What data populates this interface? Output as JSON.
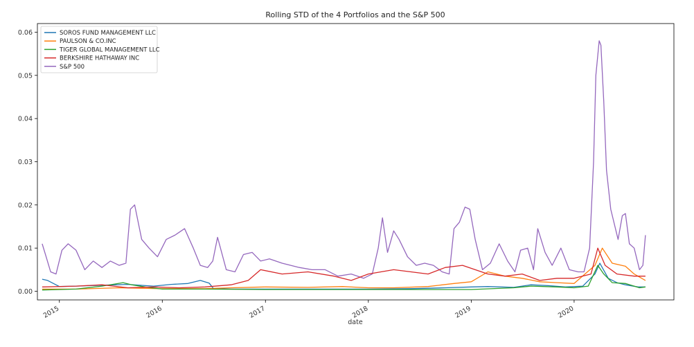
{
  "chart_data": {
    "type": "line",
    "title": "Rolling STD of the 4 Portfolios and the S&P 500",
    "xlabel": "date",
    "ylabel": "",
    "xlim": [
      "2014-10-15",
      "2020-12-20"
    ],
    "ylim": [
      -0.002,
      0.062
    ],
    "x_ticks": [
      "2015",
      "2016",
      "2017",
      "2018",
      "2019",
      "2020"
    ],
    "y_ticks": [
      "0.00",
      "0.01",
      "0.02",
      "0.03",
      "0.04",
      "0.05",
      "0.06"
    ],
    "grid": false,
    "legend_position": "top-left",
    "series": [
      {
        "name": "SOROS FUND MANAGEMENT LLC",
        "color": "#1f77b4",
        "x": [
          "2014-11-01",
          "2014-11-20",
          "2015-01-01",
          "2015-03-01",
          "2015-06-01",
          "2015-09-01",
          "2015-12-01",
          "2016-02-01",
          "2016-04-01",
          "2016-05-15",
          "2016-06-15",
          "2016-07-01",
          "2016-09-01",
          "2017-01-01",
          "2017-06-01",
          "2018-01-01",
          "2018-06-01",
          "2018-10-01",
          "2019-01-01",
          "2019-03-01",
          "2019-06-01",
          "2019-08-01",
          "2019-10-01",
          "2019-12-01",
          "2020-02-01",
          "2020-03-15",
          "2020-04-01",
          "2020-05-01",
          "2020-06-01",
          "2020-07-01",
          "2020-08-15",
          "2020-09-10"
        ],
        "y": [
          0.0028,
          0.0025,
          0.0011,
          0.0012,
          0.0014,
          0.0016,
          0.0012,
          0.0016,
          0.0018,
          0.0025,
          0.0019,
          0.0006,
          0.0005,
          0.0005,
          0.0005,
          0.0005,
          0.0006,
          0.0008,
          0.001,
          0.0011,
          0.0009,
          0.0015,
          0.0013,
          0.001,
          0.0012,
          0.004,
          0.0065,
          0.003,
          0.002,
          0.0015,
          0.001,
          0.001
        ]
      },
      {
        "name": "PAULSON & CO.INC",
        "color": "#ff7f0e",
        "x": [
          "2014-11-01",
          "2015-03-01",
          "2015-08-01",
          "2016-01-01",
          "2016-06-01",
          "2016-09-01",
          "2017-01-01",
          "2017-06-01",
          "2017-10-01",
          "2018-01-01",
          "2018-04-01",
          "2018-08-01",
          "2018-11-01",
          "2019-01-01",
          "2019-03-01",
          "2019-05-01",
          "2019-07-01",
          "2019-09-01",
          "2019-11-01",
          "2020-01-01",
          "2020-03-15",
          "2020-04-10",
          "2020-05-15",
          "2020-07-01",
          "2020-08-01",
          "2020-09-10"
        ],
        "y": [
          0.0005,
          0.0005,
          0.0008,
          0.0006,
          0.0006,
          0.0008,
          0.001,
          0.0009,
          0.0011,
          0.0008,
          0.0008,
          0.0011,
          0.0018,
          0.0022,
          0.0045,
          0.0035,
          0.003,
          0.0022,
          0.002,
          0.0018,
          0.006,
          0.01,
          0.0065,
          0.0058,
          0.004,
          0.0025
        ]
      },
      {
        "name": "TIGER GLOBAL MANAGEMENT LLC",
        "color": "#2ca02c",
        "x": [
          "2014-11-01",
          "2015-03-01",
          "2015-06-01",
          "2015-08-15",
          "2015-09-15",
          "2015-11-01",
          "2016-01-01",
          "2016-06-01",
          "2017-01-01",
          "2017-06-01",
          "2018-01-01",
          "2018-06-01",
          "2019-01-01",
          "2019-06-01",
          "2019-08-01",
          "2019-11-01",
          "2020-01-01",
          "2020-02-20",
          "2020-03-25",
          "2020-04-15",
          "2020-05-15",
          "2020-07-01",
          "2020-08-20",
          "2020-09-10"
        ],
        "y": [
          0.0003,
          0.0005,
          0.0012,
          0.002,
          0.0015,
          0.001,
          0.0005,
          0.0005,
          0.0004,
          0.0004,
          0.0004,
          0.0004,
          0.0004,
          0.0008,
          0.0012,
          0.001,
          0.0008,
          0.0012,
          0.006,
          0.004,
          0.002,
          0.0018,
          0.0008,
          0.001
        ]
      },
      {
        "name": "BERKSHIRE HATHAWAY INC",
        "color": "#d62728",
        "x": [
          "2014-11-01",
          "2015-03-01",
          "2015-06-01",
          "2015-09-01",
          "2015-12-01",
          "2016-03-01",
          "2016-06-01",
          "2016-09-01",
          "2016-11-01",
          "2016-12-15",
          "2017-03-01",
          "2017-06-01",
          "2017-09-01",
          "2017-11-01",
          "2018-01-01",
          "2018-04-01",
          "2018-06-01",
          "2018-08-01",
          "2018-10-01",
          "2018-12-01",
          "2019-03-01",
          "2019-05-01",
          "2019-07-01",
          "2019-09-01",
          "2019-11-01",
          "2020-01-01",
          "2020-03-01",
          "2020-03-25",
          "2020-04-20",
          "2020-06-01",
          "2020-08-01",
          "2020-09-10"
        ],
        "y": [
          0.001,
          0.0012,
          0.0015,
          0.0008,
          0.001,
          0.0008,
          0.001,
          0.0015,
          0.0025,
          0.005,
          0.004,
          0.0045,
          0.0035,
          0.0025,
          0.004,
          0.005,
          0.0045,
          0.004,
          0.0055,
          0.006,
          0.004,
          0.0035,
          0.004,
          0.0025,
          0.003,
          0.003,
          0.004,
          0.01,
          0.006,
          0.004,
          0.0035,
          0.0035
        ]
      },
      {
        "name": "S&P 500",
        "color": "#9467bd",
        "x": [
          "2014-11-01",
          "2014-11-15",
          "2014-12-01",
          "2014-12-20",
          "2015-01-10",
          "2015-02-01",
          "2015-03-01",
          "2015-04-01",
          "2015-05-01",
          "2015-06-01",
          "2015-07-01",
          "2015-08-01",
          "2015-08-25",
          "2015-09-10",
          "2015-09-25",
          "2015-10-20",
          "2015-11-15",
          "2015-12-15",
          "2016-01-15",
          "2016-02-15",
          "2016-03-20",
          "2016-04-20",
          "2016-05-15",
          "2016-06-10",
          "2016-06-28",
          "2016-07-15",
          "2016-08-15",
          "2016-09-15",
          "2016-10-15",
          "2016-11-15",
          "2016-12-15",
          "2017-01-15",
          "2017-03-01",
          "2017-05-01",
          "2017-06-15",
          "2017-08-01",
          "2017-09-15",
          "2017-11-01",
          "2017-12-15",
          "2018-01-15",
          "2018-02-05",
          "2018-02-20",
          "2018-03-10",
          "2018-04-01",
          "2018-04-20",
          "2018-05-20",
          "2018-06-20",
          "2018-07-20",
          "2018-08-20",
          "2018-09-20",
          "2018-10-15",
          "2018-11-01",
          "2018-11-20",
          "2018-12-10",
          "2018-12-27",
          "2019-01-15",
          "2019-02-10",
          "2019-03-10",
          "2019-04-10",
          "2019-05-10",
          "2019-06-05",
          "2019-06-25",
          "2019-07-20",
          "2019-08-10",
          "2019-08-25",
          "2019-09-20",
          "2019-10-15",
          "2019-11-15",
          "2019-12-15",
          "2020-01-15",
          "2020-02-05",
          "2020-02-25",
          "2020-03-10",
          "2020-03-18",
          "2020-03-30",
          "2020-04-05",
          "2020-04-15",
          "2020-04-25",
          "2020-05-10",
          "2020-06-05",
          "2020-06-20",
          "2020-07-01",
          "2020-07-15",
          "2020-08-01",
          "2020-08-20",
          "2020-09-01",
          "2020-09-10"
        ],
        "y": [
          0.011,
          0.008,
          0.0045,
          0.004,
          0.0095,
          0.011,
          0.0095,
          0.005,
          0.007,
          0.0055,
          0.007,
          0.006,
          0.0065,
          0.019,
          0.02,
          0.012,
          0.01,
          0.008,
          0.012,
          0.013,
          0.0145,
          0.01,
          0.006,
          0.0055,
          0.007,
          0.0125,
          0.005,
          0.0045,
          0.0085,
          0.009,
          0.007,
          0.0075,
          0.0065,
          0.0055,
          0.005,
          0.005,
          0.0035,
          0.004,
          0.003,
          0.004,
          0.01,
          0.017,
          0.009,
          0.014,
          0.012,
          0.008,
          0.006,
          0.0065,
          0.006,
          0.0045,
          0.004,
          0.0145,
          0.016,
          0.0195,
          0.019,
          0.012,
          0.005,
          0.0065,
          0.011,
          0.007,
          0.0045,
          0.0095,
          0.01,
          0.005,
          0.0145,
          0.009,
          0.006,
          0.01,
          0.005,
          0.0045,
          0.0045,
          0.01,
          0.03,
          0.05,
          0.058,
          0.057,
          0.044,
          0.028,
          0.019,
          0.012,
          0.0175,
          0.018,
          0.011,
          0.01,
          0.005,
          0.006,
          0.013
        ]
      }
    ]
  }
}
